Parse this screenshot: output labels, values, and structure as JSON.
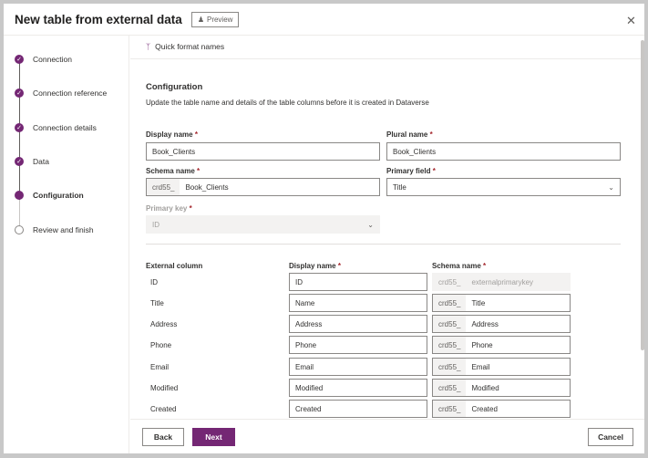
{
  "header": {
    "title": "New table from external data",
    "preview_label": "Preview",
    "close_icon": "close-icon"
  },
  "steps": [
    {
      "label": "Connection",
      "state": "done"
    },
    {
      "label": "Connection reference",
      "state": "done"
    },
    {
      "label": "Connection details",
      "state": "done"
    },
    {
      "label": "Data",
      "state": "done"
    },
    {
      "label": "Configuration",
      "state": "current"
    },
    {
      "label": "Review and finish",
      "state": "pending"
    }
  ],
  "toolbar": {
    "quick_format": "Quick format names"
  },
  "config": {
    "heading": "Configuration",
    "description": "Update the table name and details of the table columns before it is created in Dataverse",
    "display_name_label": "Display name",
    "display_name": "Book_Clients",
    "plural_name_label": "Plural name",
    "plural_name": "Book_Clients",
    "schema_name_label": "Schema name",
    "schema_prefix": "crd55_",
    "schema_name": "Book_Clients",
    "primary_field_label": "Primary field",
    "primary_field": "Title",
    "primary_key_label": "Primary key",
    "primary_key": "ID",
    "required_mark": "*"
  },
  "columns": {
    "headers": {
      "external": "External column",
      "display": "Display name",
      "schema": "Schema name"
    },
    "rows": [
      {
        "external": "ID",
        "display": "ID",
        "prefix": "crd55_",
        "schema": "externalprimarykey",
        "disabled": true
      },
      {
        "external": "Title",
        "display": "Name",
        "prefix": "crd55_",
        "schema": "Title"
      },
      {
        "external": "Address",
        "display": "Address",
        "prefix": "crd55_",
        "schema": "Address"
      },
      {
        "external": "Phone",
        "display": "Phone",
        "prefix": "crd55_",
        "schema": "Phone"
      },
      {
        "external": "Email",
        "display": "Email",
        "prefix": "crd55_",
        "schema": "Email"
      },
      {
        "external": "Modified",
        "display": "Modified",
        "prefix": "crd55_",
        "schema": "Modified"
      },
      {
        "external": "Created",
        "display": "Created",
        "prefix": "crd55_",
        "schema": "Created"
      }
    ]
  },
  "footer": {
    "back": "Back",
    "next": "Next",
    "cancel": "Cancel"
  },
  "colors": {
    "accent": "#742774"
  }
}
